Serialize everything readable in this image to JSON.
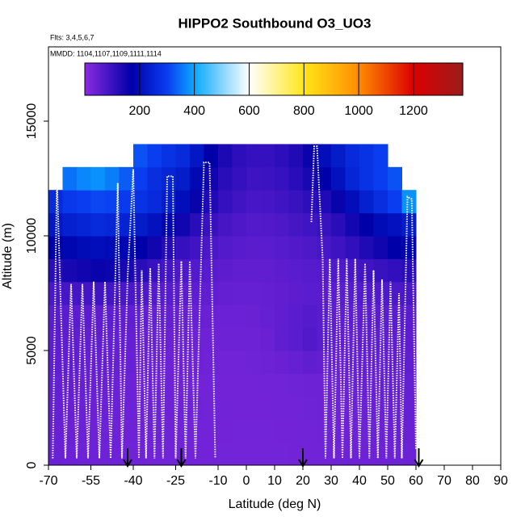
{
  "chart_data": {
    "type": "heatmap",
    "title": "HIPPO2 Southbound O3_UO3",
    "subtitle": "Flts: 3,4,5,6,7",
    "annotation": "MMDD: 1104,1107,1109,1111,1114",
    "xlabel": "Latitude (deg N)",
    "ylabel": "Altitude (m)",
    "xlim": [
      -70,
      90
    ],
    "ylim": [
      0,
      18240
    ],
    "xticks": [
      -70,
      -55,
      -40,
      -25,
      -10,
      0,
      10,
      20,
      30,
      40,
      50,
      60,
      70,
      80,
      90
    ],
    "yticks": [
      0,
      5000,
      10000,
      15000
    ],
    "xbins": [
      -70,
      -65,
      -60,
      -55,
      -50,
      -45,
      -40,
      -35,
      -30,
      -25,
      -20,
      -15,
      -10,
      -5,
      0,
      5,
      10,
      15,
      20,
      25,
      30,
      35,
      40,
      45,
      50,
      55,
      60
    ],
    "ybins": [
      0,
      1000,
      2000,
      3000,
      4000,
      5000,
      6000,
      7000,
      8000,
      9000,
      10000,
      11000,
      12000,
      13000,
      14000
    ],
    "z": [
      [
        40,
        38,
        36,
        35,
        34,
        33,
        33,
        32,
        32,
        31,
        30,
        30,
        29,
        28,
        28,
        28,
        29,
        30,
        31,
        32,
        33,
        34,
        35,
        36,
        37,
        38
      ],
      [
        42,
        40,
        38,
        37,
        36,
        35,
        35,
        34,
        33,
        32,
        31,
        31,
        30,
        29,
        29,
        29,
        30,
        31,
        32,
        33,
        35,
        36,
        37,
        38,
        39,
        40
      ],
      [
        45,
        43,
        41,
        40,
        39,
        38,
        37,
        36,
        35,
        34,
        33,
        32,
        31,
        30,
        30,
        30,
        31,
        32,
        33,
        35,
        37,
        38,
        40,
        41,
        42,
        44
      ],
      [
        48,
        46,
        44,
        42,
        40,
        38,
        36,
        35,
        34,
        33,
        32,
        31,
        30,
        30,
        30,
        31,
        32,
        33,
        34,
        36,
        38,
        40,
        42,
        44,
        46,
        48
      ],
      [
        52,
        50,
        48,
        46,
        44,
        42,
        40,
        38,
        36,
        35,
        34,
        33,
        32,
        32,
        33,
        35,
        40,
        45,
        50,
        46,
        42,
        44,
        46,
        48,
        50,
        52
      ],
      [
        56,
        54,
        52,
        50,
        48,
        46,
        44,
        42,
        40,
        38,
        36,
        35,
        34,
        34,
        36,
        40,
        50,
        60,
        70,
        60,
        50,
        48,
        50,
        52,
        54,
        56
      ],
      [
        62,
        60,
        58,
        56,
        54,
        52,
        50,
        48,
        46,
        44,
        42,
        40,
        38,
        38,
        40,
        44,
        52,
        60,
        66,
        58,
        54,
        54,
        56,
        58,
        60,
        62
      ],
      [
        80,
        85,
        88,
        90,
        86,
        80,
        74,
        68,
        62,
        58,
        54,
        50,
        46,
        44,
        44,
        46,
        50,
        56,
        60,
        58,
        60,
        64,
        68,
        72,
        76,
        80
      ],
      [
        120,
        140,
        150,
        160,
        155,
        140,
        120,
        100,
        86,
        76,
        68,
        62,
        56,
        52,
        50,
        52,
        56,
        60,
        64,
        66,
        72,
        80,
        90,
        100,
        110,
        120
      ],
      [
        170,
        185,
        195,
        200,
        195,
        185,
        170,
        150,
        125,
        105,
        90,
        78,
        68,
        62,
        58,
        60,
        64,
        70,
        76,
        82,
        95,
        110,
        130,
        150,
        170,
        180
      ],
      [
        220,
        240,
        250,
        260,
        255,
        245,
        230,
        210,
        180,
        150,
        120,
        100,
        84,
        74,
        68,
        70,
        76,
        84,
        92,
        100,
        120,
        145,
        170,
        195,
        210,
        230
      ],
      [
        260,
        290,
        300,
        310,
        305,
        295,
        280,
        260,
        230,
        200,
        160,
        130,
        105,
        90,
        82,
        84,
        90,
        100,
        115,
        130,
        160,
        200,
        240,
        270,
        300,
        380
      ],
      [
        null,
        350,
        370,
        380,
        360,
        330,
        300,
        270,
        250,
        230,
        190,
        150,
        120,
        105,
        95,
        96,
        104,
        118,
        140,
        170,
        210,
        250,
        280,
        300,
        320,
        null
      ],
      [
        null,
        null,
        null,
        null,
        null,
        null,
        320,
        300,
        280,
        260,
        220,
        170,
        135,
        115,
        105,
        106,
        115,
        130,
        160,
        200,
        230,
        260,
        280,
        300,
        null,
        null
      ]
    ],
    "colorscale": [
      [
        0,
        "#8a2be2"
      ],
      [
        170,
        "#0000a8"
      ],
      [
        300,
        "#0a3cf0"
      ],
      [
        400,
        "#0aa8ff"
      ],
      [
        600,
        "#ffffff"
      ],
      [
        800,
        "#ffe61a"
      ],
      [
        1000,
        "#ff8c00"
      ],
      [
        1200,
        "#dd0000"
      ],
      [
        1380,
        "#9a1c1c"
      ]
    ],
    "colorbar_lim": [
      0,
      1380
    ],
    "colorbar_ticks": [
      200,
      400,
      600,
      800,
      1000,
      1200
    ],
    "track_color": "#ffffff",
    "track_x": [
      -68.5,
      -67,
      -64,
      -62,
      -60,
      -58,
      -56,
      -54,
      -52,
      -50,
      -48,
      -45.5,
      -44,
      -42,
      -40,
      -38,
      -37,
      -35.5,
      -34,
      -32.5,
      -31,
      -29.5,
      -28,
      -26,
      -25,
      -23,
      -21.5,
      -20,
      -18,
      -15,
      -13,
      -11,
      null,
      23,
      24,
      25,
      27,
      28,
      29.5,
      31,
      32.5,
      34,
      35.5,
      37,
      38.5,
      40,
      42,
      43.5,
      45,
      46.5,
      48,
      49.5,
      51,
      52.5,
      54,
      55,
      57,
      58.5,
      60
    ],
    "track_y": [
      300,
      12500,
      300,
      7900,
      300,
      7900,
      300,
      8000,
      300,
      8000,
      300,
      12300,
      300,
      8200,
      12900,
      300,
      8500,
      300,
      8600,
      300,
      8800,
      300,
      12600,
      12600,
      300,
      8900,
      300,
      8900,
      300,
      13200,
      13200,
      300,
      null,
      10600,
      13900,
      13900,
      9000,
      300,
      9000,
      300,
      9000,
      300,
      9000,
      300,
      9000,
      300,
      8800,
      300,
      8500,
      300,
      8100,
      300,
      8000,
      300,
      7500,
      300,
      11700,
      11600,
      700
    ],
    "arrows_x": [
      -42,
      -23,
      20,
      61
    ]
  }
}
